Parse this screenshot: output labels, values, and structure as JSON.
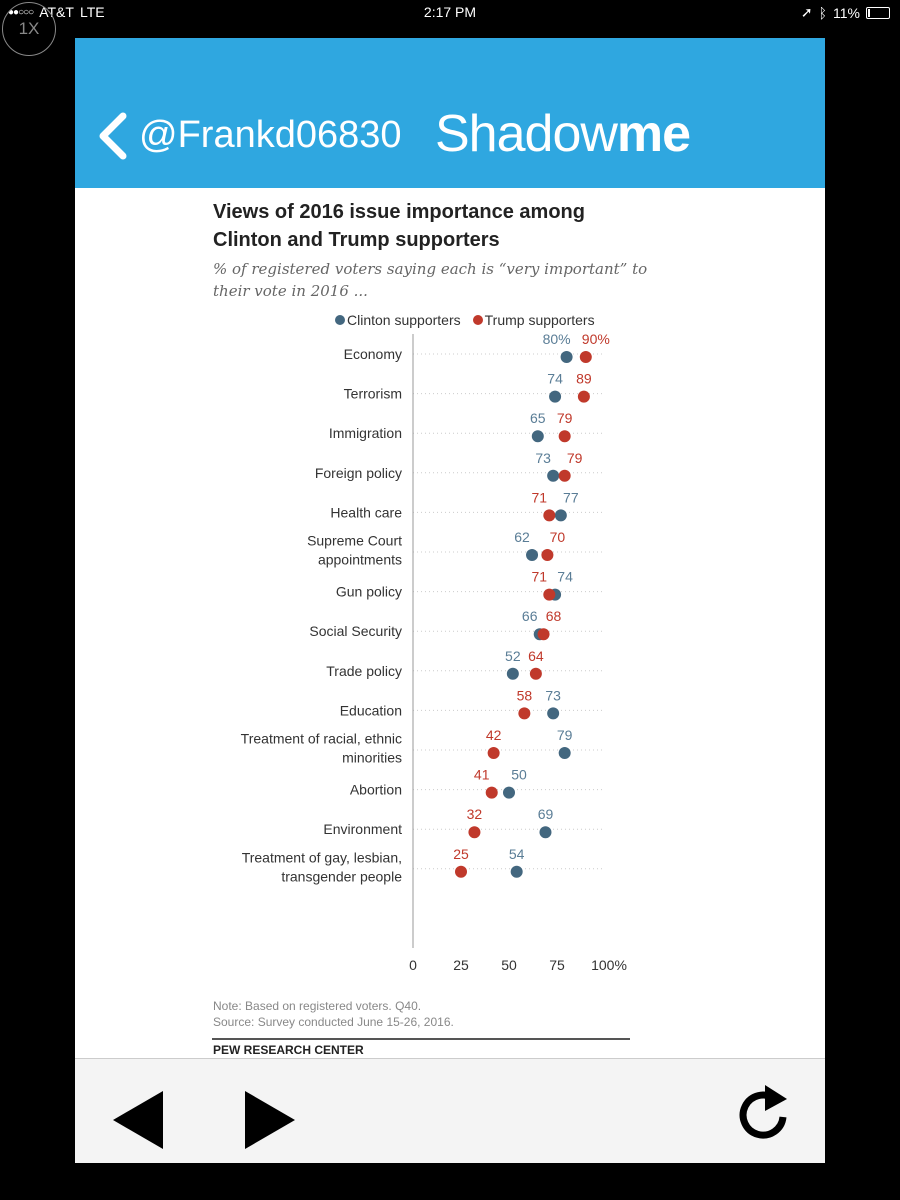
{
  "status": {
    "carrier": "AT&T",
    "network": "LTE",
    "time": "2:17 PM",
    "battery": "11%"
  },
  "zoom_badge": "1X",
  "header": {
    "handle": "@Frankd06830",
    "brand_light": "Shadow",
    "brand_bold": "me"
  },
  "colors": {
    "header_bg": "#2fa7e0",
    "clinton": "#43677f",
    "trump": "#c0392b"
  },
  "chart_data": {
    "type": "scatter",
    "title": "Views of 2016 issue importance among Clinton and Trump supporters",
    "title_lines": [
      "Views of 2016 issue importance among",
      "Clinton and Trump supporters"
    ],
    "subtitle_lines": [
      "% of registered voters saying each is “very important” to",
      "their vote in 2016 ..."
    ],
    "legend": [
      "Clinton supporters",
      "Trump supporters"
    ],
    "categories": [
      [
        "Economy"
      ],
      [
        "Terrorism"
      ],
      [
        "Immigration"
      ],
      [
        "Foreign policy"
      ],
      [
        "Health care"
      ],
      [
        "Supreme Court",
        "appointments"
      ],
      [
        "Gun policy"
      ],
      [
        "Social Security"
      ],
      [
        "Trade policy"
      ],
      [
        "Education"
      ],
      [
        "Treatment of racial, ethnic",
        "minorities"
      ],
      [
        "Abortion"
      ],
      [
        "Environment"
      ],
      [
        "Treatment of gay, lesbian,",
        "transgender people"
      ]
    ],
    "series": [
      {
        "name": "Clinton supporters",
        "values": [
          80,
          74,
          65,
          73,
          77,
          62,
          74,
          66,
          52,
          73,
          79,
          50,
          69,
          54
        ]
      },
      {
        "name": "Trump supporters",
        "values": [
          90,
          89,
          79,
          79,
          71,
          70,
          71,
          68,
          64,
          58,
          42,
          41,
          32,
          25
        ]
      }
    ],
    "value_labels": {
      "clinton": [
        "80%",
        "74",
        "65",
        "73",
        "77",
        "62",
        "74",
        "66",
        "52",
        "73",
        "79",
        "50",
        "69",
        "54"
      ],
      "trump": [
        "90%",
        "89",
        "79",
        "79",
        "71",
        "70",
        "71",
        "68",
        "64",
        "58",
        "42",
        "41",
        "32",
        "25"
      ]
    },
    "x_ticks": [
      "0",
      "25",
      "50",
      "75",
      "100%"
    ],
    "xlim": [
      0,
      100
    ],
    "xlabel": "",
    "ylabel": ""
  },
  "notes": {
    "note": "Note: Based on registered voters. Q40.",
    "source": "Source: Survey conducted June 15-26, 2016.",
    "org": "PEW RESEARCH CENTER"
  },
  "toolbar": {
    "back": "back-arrow-icon",
    "forward": "forward-arrow-icon",
    "reload": "reload-icon"
  }
}
